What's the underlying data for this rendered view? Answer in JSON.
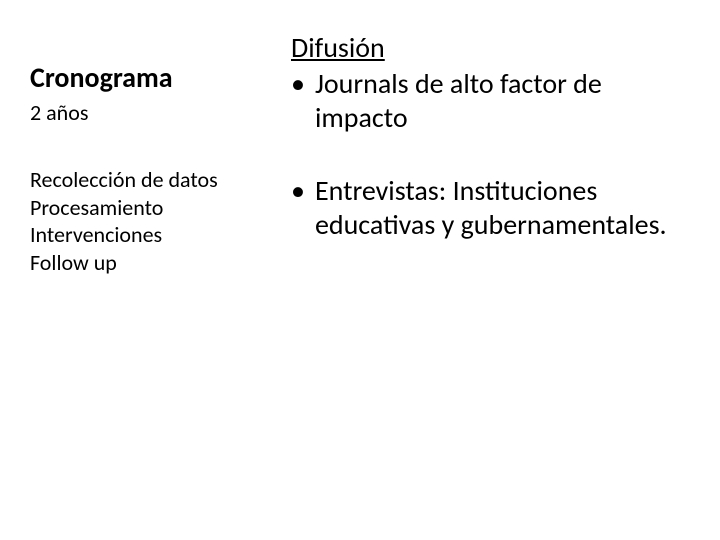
{
  "left": {
    "heading": "Cronograma",
    "subheading": "2 años",
    "items": [
      "Recolección de datos",
      "Procesamiento",
      "Intervenciones",
      "Follow up"
    ]
  },
  "right": {
    "heading": "Difusión",
    "bullets": [
      "Journals de alto factor de impacto",
      "Entrevistas: Instituciones educativas y gubernamentales."
    ]
  },
  "style": {
    "background_color": "#ffffff",
    "text_color": "#000000",
    "heading_left_fontsize": 28,
    "subheading_left_fontsize": 22,
    "item_left_fontsize": 22,
    "heading_right_fontsize": 28,
    "bullet_text_fontsize": 28,
    "font_family": "Calibri"
  }
}
